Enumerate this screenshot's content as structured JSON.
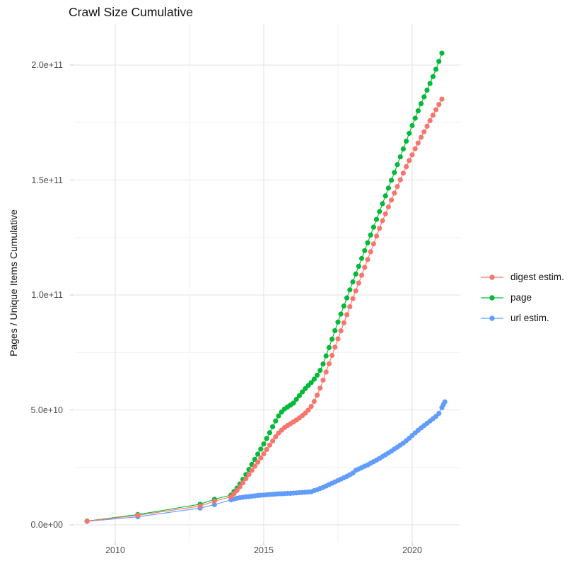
{
  "chart": {
    "background_color": "#ffffff",
    "grid_major_color": "#e3e3e3",
    "grid_minor_color": "#f1f1f1",
    "tick_mark_color": "#cccccc",
    "axis_text_color": "#4d4d4d"
  },
  "chart_data": {
    "type": "line",
    "markers": true,
    "title": "Crawl Size Cumulative",
    "xlabel": "",
    "ylabel": "Pages / Unique Items Cumulative",
    "x_unit": "year",
    "xlim": [
      2008.6,
      2021.6
    ],
    "ylim": [
      0,
      210000000000.0
    ],
    "grid": true,
    "legend_position": "right",
    "x_tick_labels": [
      "2010",
      "2015",
      "2020"
    ],
    "y_tick_labels": [
      "0.0e+00",
      "5.0e+10",
      "1.0e+11",
      "1.5e+11",
      "2.0e+11"
    ],
    "x_major_ticks": [
      2010,
      2015,
      2020
    ],
    "x_minor_ticks": [
      2012.5,
      2017.5
    ],
    "y_major_ticks": [
      0,
      50000000000.0,
      100000000000.0,
      150000000000.0,
      200000000000.0
    ],
    "y_minor_ticks": [
      25000000000.0,
      75000000000.0,
      125000000000.0,
      175000000000.0
    ],
    "series": [
      {
        "name": "digest estim.",
        "color": "#F8766D",
        "x": [
          2009.05,
          2010.76,
          2012.86,
          2013.34,
          2013.9,
          2014.0,
          2014.1,
          2014.2,
          2014.3,
          2014.4,
          2014.5,
          2014.6,
          2014.7,
          2014.8,
          2014.9,
          2015.0,
          2015.1,
          2015.2,
          2015.3,
          2015.4,
          2015.5,
          2015.6,
          2015.7,
          2015.8,
          2015.9,
          2016.0,
          2016.1,
          2016.2,
          2016.3,
          2016.4,
          2016.5,
          2016.6,
          2016.7,
          2016.8,
          2016.9,
          2017.0,
          2017.1,
          2017.2,
          2017.3,
          2017.4,
          2017.5,
          2017.6,
          2017.7,
          2017.8,
          2017.9,
          2018.0,
          2018.1,
          2018.2,
          2018.3,
          2018.4,
          2018.5,
          2018.6,
          2018.7,
          2018.8,
          2018.9,
          2019.0,
          2019.1,
          2019.2,
          2019.3,
          2019.4,
          2019.5,
          2019.6,
          2019.7,
          2019.8,
          2019.9,
          2020.0,
          2020.1,
          2020.2,
          2020.3,
          2020.4,
          2020.5,
          2020.6,
          2020.7,
          2020.8,
          2020.9,
          2021.0
        ],
        "y": [
          1600000000.0,
          4200000000.0,
          8200000000.0,
          10300000000.0,
          12200000000.0,
          13600000000.0,
          15000000000.0,
          16600000000.0,
          18300000000.0,
          20100000000.0,
          21900000000.0,
          23700000000.0,
          25500000000.0,
          27300000000.0,
          29100000000.0,
          30900000000.0,
          32800000000.0,
          34700000000.0,
          36500000000.0,
          38300000000.0,
          39900000000.0,
          41200000000.0,
          42300000000.0,
          43200000000.0,
          44000000000.0,
          44800000000.0,
          45600000000.0,
          46500000000.0,
          47500000000.0,
          48600000000.0,
          49900000000.0,
          51500000000.0,
          53700000000.0,
          56400000000.0,
          59500000000.0,
          63000000000.0,
          66500000000.0,
          70100000000.0,
          73700000000.0,
          77300000000.0,
          80900000000.0,
          84400000000.0,
          87900000000.0,
          91400000000.0,
          94900000000.0,
          98400000000.0,
          101800000000.0,
          105200000000.0,
          108600000000.0,
          112000000000.0,
          115400000000.0,
          118800000000.0,
          122200000000.0,
          125600000000.0,
          129000000000.0,
          132300000000.0,
          135300000000.0,
          138300000000.0,
          141300000000.0,
          144300000000.0,
          147200000000.0,
          150100000000.0,
          153000000000.0,
          155800000000.0,
          158500000000.0,
          161000000000.0,
          163600000000.0,
          166100000000.0,
          168600000000.0,
          171000000000.0,
          173400000000.0,
          175800000000.0,
          178200000000.0,
          180600000000.0,
          182900000000.0,
          185200000000.0
        ]
      },
      {
        "name": "page",
        "color": "#00BA38",
        "x": [
          2009.05,
          2010.76,
          2012.86,
          2013.34,
          2013.9,
          2014.0,
          2014.1,
          2014.2,
          2014.3,
          2014.4,
          2014.5,
          2014.6,
          2014.7,
          2014.8,
          2014.9,
          2015.0,
          2015.1,
          2015.2,
          2015.3,
          2015.4,
          2015.5,
          2015.6,
          2015.7,
          2015.8,
          2015.9,
          2016.0,
          2016.1,
          2016.2,
          2016.3,
          2016.4,
          2016.5,
          2016.6,
          2016.7,
          2016.8,
          2016.9,
          2017.0,
          2017.1,
          2017.2,
          2017.3,
          2017.4,
          2017.5,
          2017.6,
          2017.7,
          2017.8,
          2017.9,
          2018.0,
          2018.1,
          2018.2,
          2018.3,
          2018.4,
          2018.5,
          2018.6,
          2018.7,
          2018.8,
          2018.9,
          2019.0,
          2019.1,
          2019.2,
          2019.3,
          2019.4,
          2019.5,
          2019.6,
          2019.7,
          2019.8,
          2019.9,
          2020.0,
          2020.1,
          2020.2,
          2020.3,
          2020.4,
          2020.5,
          2020.6,
          2020.7,
          2020.8,
          2020.9,
          2021.0
        ],
        "y": [
          1700000000.0,
          4500000000.0,
          9000000000.0,
          11100000000.0,
          13000000000.0,
          14500000000.0,
          16000000000.0,
          17800000000.0,
          19800000000.0,
          21900000000.0,
          24100000000.0,
          26300000000.0,
          28500000000.0,
          30800000000.0,
          33000000000.0,
          35200000000.0,
          37600000000.0,
          40100000000.0,
          42700000000.0,
          45200000000.0,
          47400000000.0,
          49100000000.0,
          50400000000.0,
          51300000000.0,
          52100000000.0,
          53000000000.0,
          54600000000.0,
          56200000000.0,
          57800000000.0,
          59300000000.0,
          60600000000.0,
          61900000000.0,
          63400000000.0,
          65100000000.0,
          67200000000.0,
          70000000000.0,
          73500000000.0,
          77100000000.0,
          80800000000.0,
          84500000000.0,
          88200000000.0,
          91700000000.0,
          95200000000.0,
          98700000000.0,
          102200000000.0,
          105700000000.0,
          109100000000.0,
          112500000000.0,
          115900000000.0,
          119300000000.0,
          122700000000.0,
          126100000000.0,
          129500000000.0,
          132900000000.0,
          136300000000.0,
          139700000000.0,
          143100000000.0,
          146500000000.0,
          149900000000.0,
          153300000000.0,
          156700000000.0,
          160100000000.0,
          163500000000.0,
          166900000000.0,
          170300000000.0,
          173700000000.0,
          176900000000.0,
          180100000000.0,
          183200000000.0,
          186200000000.0,
          189100000000.0,
          192000000000.0,
          195000000000.0,
          198200000000.0,
          201600000000.0,
          205200000000.0
        ]
      },
      {
        "name": "url estim.",
        "color": "#619CFF",
        "x": [
          2009.05,
          2010.76,
          2012.86,
          2013.34,
          2013.9,
          2014.0,
          2014.1,
          2014.2,
          2014.3,
          2014.4,
          2014.5,
          2014.6,
          2014.7,
          2014.8,
          2014.9,
          2015.0,
          2015.1,
          2015.2,
          2015.3,
          2015.4,
          2015.5,
          2015.6,
          2015.7,
          2015.8,
          2015.9,
          2016.0,
          2016.1,
          2016.2,
          2016.3,
          2016.4,
          2016.5,
          2016.6,
          2016.7,
          2016.8,
          2016.9,
          2017.0,
          2017.1,
          2017.2,
          2017.3,
          2017.4,
          2017.5,
          2017.6,
          2017.7,
          2017.8,
          2017.9,
          2018.0,
          2018.1,
          2018.2,
          2018.3,
          2018.4,
          2018.5,
          2018.6,
          2018.7,
          2018.8,
          2018.9,
          2019.0,
          2019.1,
          2019.2,
          2019.3,
          2019.4,
          2019.5,
          2019.6,
          2019.7,
          2019.8,
          2019.9,
          2020.0,
          2020.1,
          2020.2,
          2020.3,
          2020.4,
          2020.5,
          2020.6,
          2020.7,
          2020.8,
          2020.9,
          2021.0,
          2021.05,
          2021.1
        ],
        "y": [
          1500000000.0,
          3500000000.0,
          7300000000.0,
          8800000000.0,
          10900000000.0,
          11300000000.0,
          11600000000.0,
          11800000000.0,
          12000000000.0,
          12200000000.0,
          12300000000.0,
          12500000000.0,
          12600000000.0,
          12800000000.0,
          12900000000.0,
          13000000000.0,
          13100000000.0,
          13200000000.0,
          13300000000.0,
          13400000000.0,
          13500000000.0,
          13500000000.0,
          13600000000.0,
          13700000000.0,
          13700000000.0,
          13800000000.0,
          13900000000.0,
          14000000000.0,
          14100000000.0,
          14200000000.0,
          14300000000.0,
          14400000000.0,
          14900000000.0,
          15300000000.0,
          15800000000.0,
          16300000000.0,
          16900000000.0,
          17500000000.0,
          18100000000.0,
          18700000000.0,
          19300000000.0,
          19900000000.0,
          20500000000.0,
          21100000000.0,
          21800000000.0,
          22500000000.0,
          23700000000.0,
          24300000000.0,
          24900000000.0,
          25500000000.0,
          26100000000.0,
          26800000000.0,
          27500000000.0,
          28200000000.0,
          28900000000.0,
          29700000000.0,
          30500000000.0,
          31300000000.0,
          32100000000.0,
          33000000000.0,
          33800000000.0,
          34700000000.0,
          35600000000.0,
          36600000000.0,
          37700000000.0,
          38900000000.0,
          40000000000.0,
          41100000000.0,
          42200000000.0,
          43200000000.0,
          44200000000.0,
          45200000000.0,
          46200000000.0,
          47200000000.0,
          48500000000.0,
          51000000000.0,
          52300000000.0,
          53500000000.0
        ]
      }
    ]
  }
}
